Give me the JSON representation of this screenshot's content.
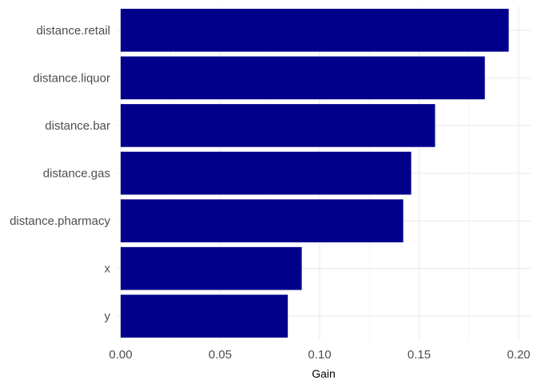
{
  "chart_data": {
    "type": "bar",
    "orientation": "horizontal",
    "categories": [
      "distance.retail",
      "distance.liquor",
      "distance.bar",
      "distance.gas",
      "distance.pharmacy",
      "x",
      "y"
    ],
    "values": [
      0.195,
      0.183,
      0.158,
      0.146,
      0.142,
      0.091,
      0.084
    ],
    "xlabel": "Gain",
    "ylabel": "",
    "xlim": [
      -0.002,
      0.206
    ],
    "x_ticks": [
      0.0,
      0.05,
      0.1,
      0.15,
      0.2
    ],
    "x_tick_labels": [
      "0.00",
      "0.05",
      "0.10",
      "0.15",
      "0.20"
    ],
    "grid": true,
    "bar_color": "#00008B",
    "grid_color": "#EBEBEB",
    "legend": "none"
  }
}
